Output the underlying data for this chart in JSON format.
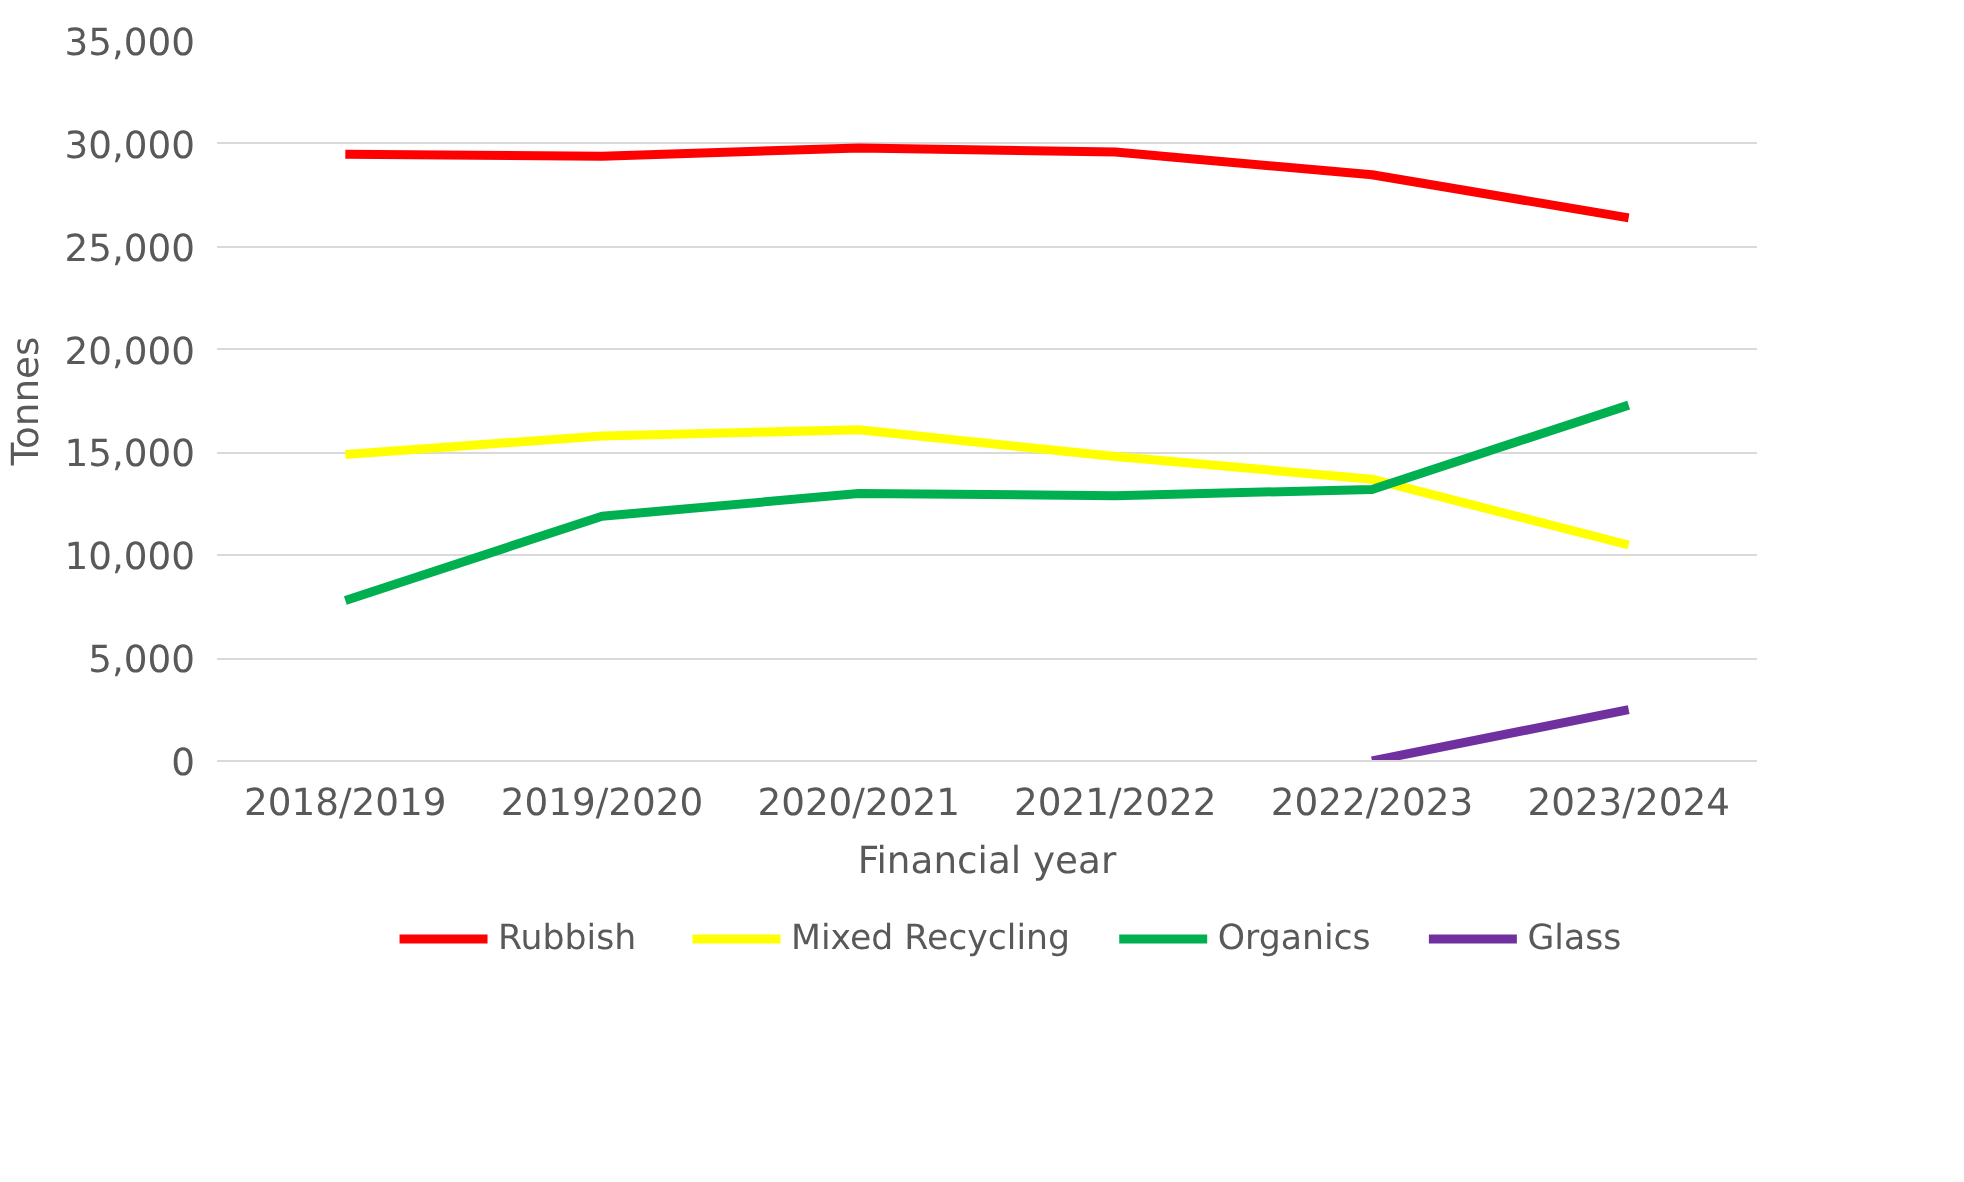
{
  "chart_data": {
    "type": "line",
    "xlabel": "Financial year",
    "ylabel": "Tonnes",
    "categories": [
      "2018/2019",
      "2019/2020",
      "2020/2021",
      "2021/2022",
      "2022/2023",
      "2023/2024"
    ],
    "series": [
      {
        "name": "Rubbish",
        "color": "#ff0000",
        "values": [
          29500,
          29400,
          29800,
          29600,
          28500,
          26400
        ]
      },
      {
        "name": "Mixed Recycling",
        "color": "#ffff00",
        "values": [
          14900,
          15800,
          16100,
          14800,
          13700,
          10500
        ]
      },
      {
        "name": "Organics",
        "color": "#00b050",
        "values": [
          7800,
          11900,
          13000,
          12900,
          13200,
          17300
        ]
      },
      {
        "name": "Glass",
        "color": "#7030a0",
        "values": [
          null,
          null,
          null,
          null,
          0,
          2500
        ]
      }
    ],
    "ylim": [
      0,
      35000
    ],
    "yticks": [
      {
        "value": 0,
        "label": "0"
      },
      {
        "value": 5000,
        "label": "5,000"
      },
      {
        "value": 10000,
        "label": "10,000"
      },
      {
        "value": 15000,
        "label": "15,000"
      },
      {
        "value": 20000,
        "label": "20,000"
      },
      {
        "value": 25000,
        "label": "25,000"
      },
      {
        "value": 30000,
        "label": "30,000"
      },
      {
        "value": 35000,
        "label": "35,000"
      }
    ],
    "grid": "y",
    "legend": "bottom",
    "marker": "none",
    "line_style": "solid"
  }
}
